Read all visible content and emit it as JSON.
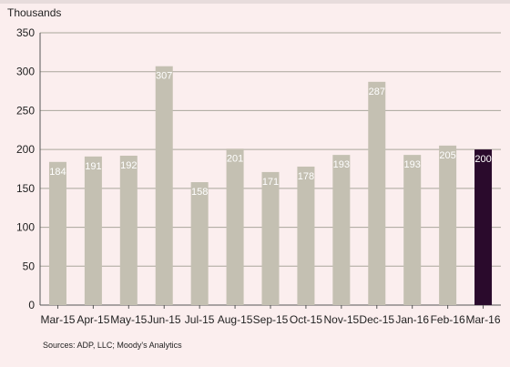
{
  "chart_data": {
    "type": "bar",
    "categories": [
      "Mar-15",
      "Apr-15",
      "May-15",
      "Jun-15",
      "Jul-15",
      "Aug-15",
      "Sep-15",
      "Oct-15",
      "Nov-15",
      "Dec-15",
      "Jan-16",
      "Feb-16",
      "Mar-16"
    ],
    "values": [
      184,
      191,
      192,
      307,
      158,
      201,
      171,
      178,
      193,
      287,
      193,
      205,
      200
    ],
    "data_labels": [
      "184",
      "191",
      "192",
      "307",
      "158",
      "201",
      "171",
      "178",
      "193",
      "287",
      "193",
      "205",
      "200"
    ],
    "title": "",
    "xlabel": "",
    "ylabel": "Thousands",
    "ylim": [
      0,
      350
    ],
    "yticks": [
      0,
      50,
      100,
      150,
      200,
      250,
      300,
      350
    ],
    "grid": true,
    "bar_color": "#c4c0b2",
    "highlight_index": 12,
    "highlight_color": "#2a0a2c",
    "source": "Sources: ADP, LLC; Moody's Analytics"
  }
}
